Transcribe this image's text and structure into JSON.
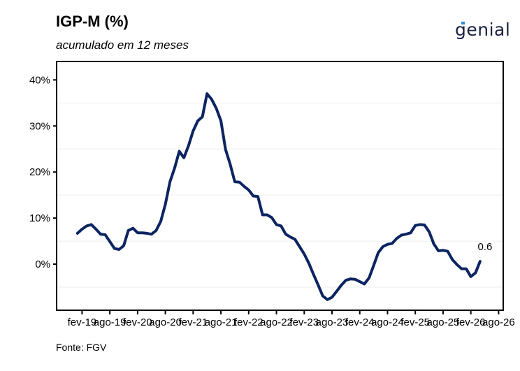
{
  "header": {
    "title": "IGP-M (%)",
    "subtitle": "acumulado em 12 meses",
    "logo_text": "genial"
  },
  "footer": {
    "source": "Fonte: FGV"
  },
  "colors": {
    "line": "#0c2461",
    "grid": "#eeeeee",
    "axis": "#000000",
    "logo_accent": "#2b8fd6"
  },
  "chart_data": {
    "type": "line",
    "title": "IGP-M (%)",
    "subtitle": "acumulado em 12 meses",
    "xlabel": "",
    "ylabel": "",
    "ylim": [
      -10,
      44
    ],
    "yticks": [
      0,
      10,
      20,
      30,
      40
    ],
    "ytick_labels": [
      "0%",
      "10%",
      "20%",
      "30%",
      "40%"
    ],
    "grid": "horizontal minor lines at -5, 5, 15, 25, 35",
    "x_start": "2019-01",
    "xticks": [
      "fev-19",
      "ago-19",
      "fev-20",
      "ago-20",
      "fev-21",
      "ago-21",
      "fev-22",
      "ago-22",
      "fev-23",
      "ago-23",
      "fev-24",
      "ago-24",
      "fev-25",
      "ago-25",
      "fev-26",
      "ago-26"
    ],
    "xtick_months": [
      1,
      7,
      13,
      19,
      25,
      31,
      37,
      43,
      49,
      55,
      61,
      67,
      73,
      79,
      85,
      91
    ],
    "x_range_months": [
      -4.5,
      92
    ],
    "series": [
      {
        "name": "IGP-M acumulado 12 meses",
        "values": [
          6.7,
          7.6,
          8.3,
          8.6,
          7.6,
          6.5,
          6.4,
          4.9,
          3.4,
          3.2,
          4.0,
          7.3,
          7.8,
          6.8,
          6.8,
          6.7,
          6.5,
          7.3,
          9.3,
          13.0,
          17.9,
          20.9,
          24.5,
          23.1,
          25.7,
          28.9,
          31.1,
          32.0,
          37.0,
          35.8,
          33.8,
          31.1,
          24.9,
          21.7,
          17.9,
          17.8,
          16.9,
          16.1,
          14.8,
          14.7,
          10.7,
          10.7,
          10.1,
          8.6,
          8.3,
          6.5,
          5.9,
          5.4,
          3.8,
          2.2,
          0.2,
          -2.2,
          -4.5,
          -6.9,
          -7.7,
          -7.2,
          -5.9,
          -4.6,
          -3.5,
          -3.2,
          -3.3,
          -3.8,
          -4.3,
          -3.0,
          -0.3,
          2.5,
          3.8,
          4.3,
          4.5,
          5.6,
          6.3,
          6.5,
          6.8,
          8.4,
          8.6,
          8.5,
          7.0,
          4.4,
          2.9,
          3.0,
          2.8,
          1.0,
          -0.1,
          -1.0,
          -1.0,
          -2.7,
          -1.9,
          0.6
        ]
      }
    ],
    "annotations": [
      {
        "text": "0.6",
        "month_index": 87,
        "value": 0.6
      }
    ]
  }
}
